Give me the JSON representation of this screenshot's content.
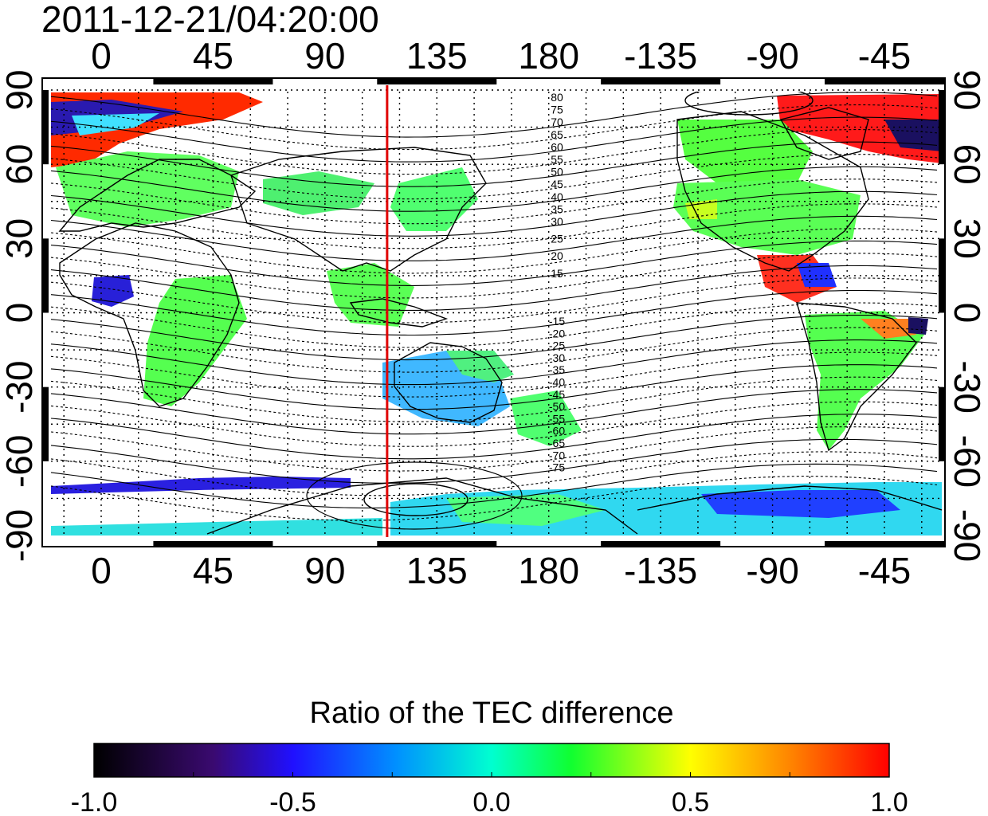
{
  "header": {
    "timestamp": "2011-12-21/04:20:00"
  },
  "map": {
    "lon_ticks": [
      "0",
      "45",
      "90",
      "135",
      "180",
      "-135",
      "-90",
      "-45"
    ],
    "lat_ticks_left": [
      "90",
      "60",
      "30",
      "0",
      "-30",
      "-60",
      "-90"
    ],
    "lat_ticks_right": [
      "90",
      "60",
      "30",
      "0",
      "-30",
      "-60",
      "-90"
    ],
    "contour_labels_north": [
      "80",
      "75",
      "70",
      "65",
      "60",
      "55",
      "50",
      "45",
      "40",
      "35",
      "30",
      "25",
      "20",
      "15"
    ],
    "contour_labels_south": [
      "-15",
      "-20",
      "-25",
      "-30",
      "-35",
      "-40",
      "-45",
      "-50",
      "-55",
      "-60",
      "-65",
      "-70",
      "-75"
    ],
    "terminator_lon": 115,
    "terminator_color": "#e00000"
  },
  "colorbar": {
    "title": "Ratio of the TEC difference",
    "tick_labels": [
      "-1.0",
      "-0.5",
      "0.0",
      "0.5",
      "1.0"
    ],
    "range": [
      -1.0,
      1.0
    ],
    "colors": [
      "#000000",
      "#3a0a70",
      "#1010ff",
      "#00ffff",
      "#00ff40",
      "#ffff00",
      "#ff0000"
    ]
  }
}
